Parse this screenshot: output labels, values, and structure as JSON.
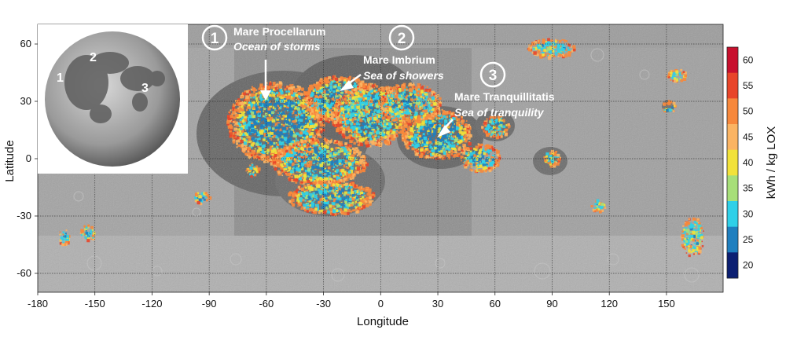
{
  "map": {
    "xlabel": "Longitude",
    "ylabel": "Latitude",
    "x_ticks": [
      "-180",
      "-150",
      "-120",
      "-90",
      "-60",
      "-30",
      "0",
      "30",
      "60",
      "90",
      "120",
      "150"
    ],
    "y_ticks": [
      "60",
      "30",
      "0",
      "-30",
      "-60"
    ],
    "colors": {
      "surface": "#8e8e8e",
      "maria": "#5e5e5e",
      "highlands": "#b3b3b3"
    }
  },
  "callouts": [
    {
      "number": "1",
      "name": "Mare Procellarum",
      "translation": "Ocean of storms"
    },
    {
      "number": "2",
      "name": "Mare Imbrium",
      "translation": "Sea of showers"
    },
    {
      "number": "3",
      "name": "Mare Tranquillitatis",
      "translation": "Sea of tranquility"
    }
  ],
  "inset": {
    "labels": [
      "1",
      "2",
      "3"
    ]
  },
  "colorbar": {
    "label": "kWh / kg LOX",
    "ticks": [
      "60",
      "55",
      "50",
      "45",
      "40",
      "35",
      "30",
      "25",
      "20"
    ],
    "colors": [
      "#c8102e",
      "#e8452a",
      "#f7883c",
      "#fbb463",
      "#f2e23a",
      "#a7df79",
      "#2fd0e8",
      "#1f7fbf",
      "#0c1f72"
    ]
  }
}
